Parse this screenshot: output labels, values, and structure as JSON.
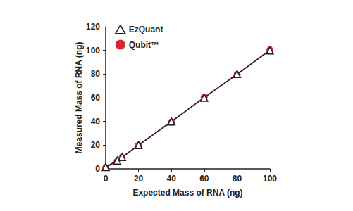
{
  "chart_data": {
    "type": "line",
    "x_label": "Expected Mass of RNA (ng)",
    "y_label": "Measured Mass of RNA (ng)",
    "xlim": [
      0,
      100
    ],
    "xticks": [
      0,
      20,
      40,
      60,
      80,
      100
    ],
    "ylim": [
      0,
      120
    ],
    "yticks": [
      0,
      20,
      40,
      60,
      80,
      100,
      120
    ],
    "grid": false,
    "legend": "upper left",
    "series": [
      {
        "name": "EzQuant",
        "color": "#222222",
        "marker": "open_triangle",
        "x": [
          0,
          7,
          10,
          20,
          40,
          60,
          80,
          100
        ],
        "values": [
          1.5,
          7,
          10,
          20,
          40,
          60,
          80,
          100
        ]
      },
      {
        "name": "Qubit™",
        "color": "#d7282f",
        "marker": "circle",
        "x": [
          0,
          7,
          10,
          20,
          40,
          60,
          80,
          100
        ],
        "values": [
          1,
          6.5,
          9.5,
          20,
          39.5,
          60.5,
          79.5,
          100.5
        ]
      }
    ]
  }
}
